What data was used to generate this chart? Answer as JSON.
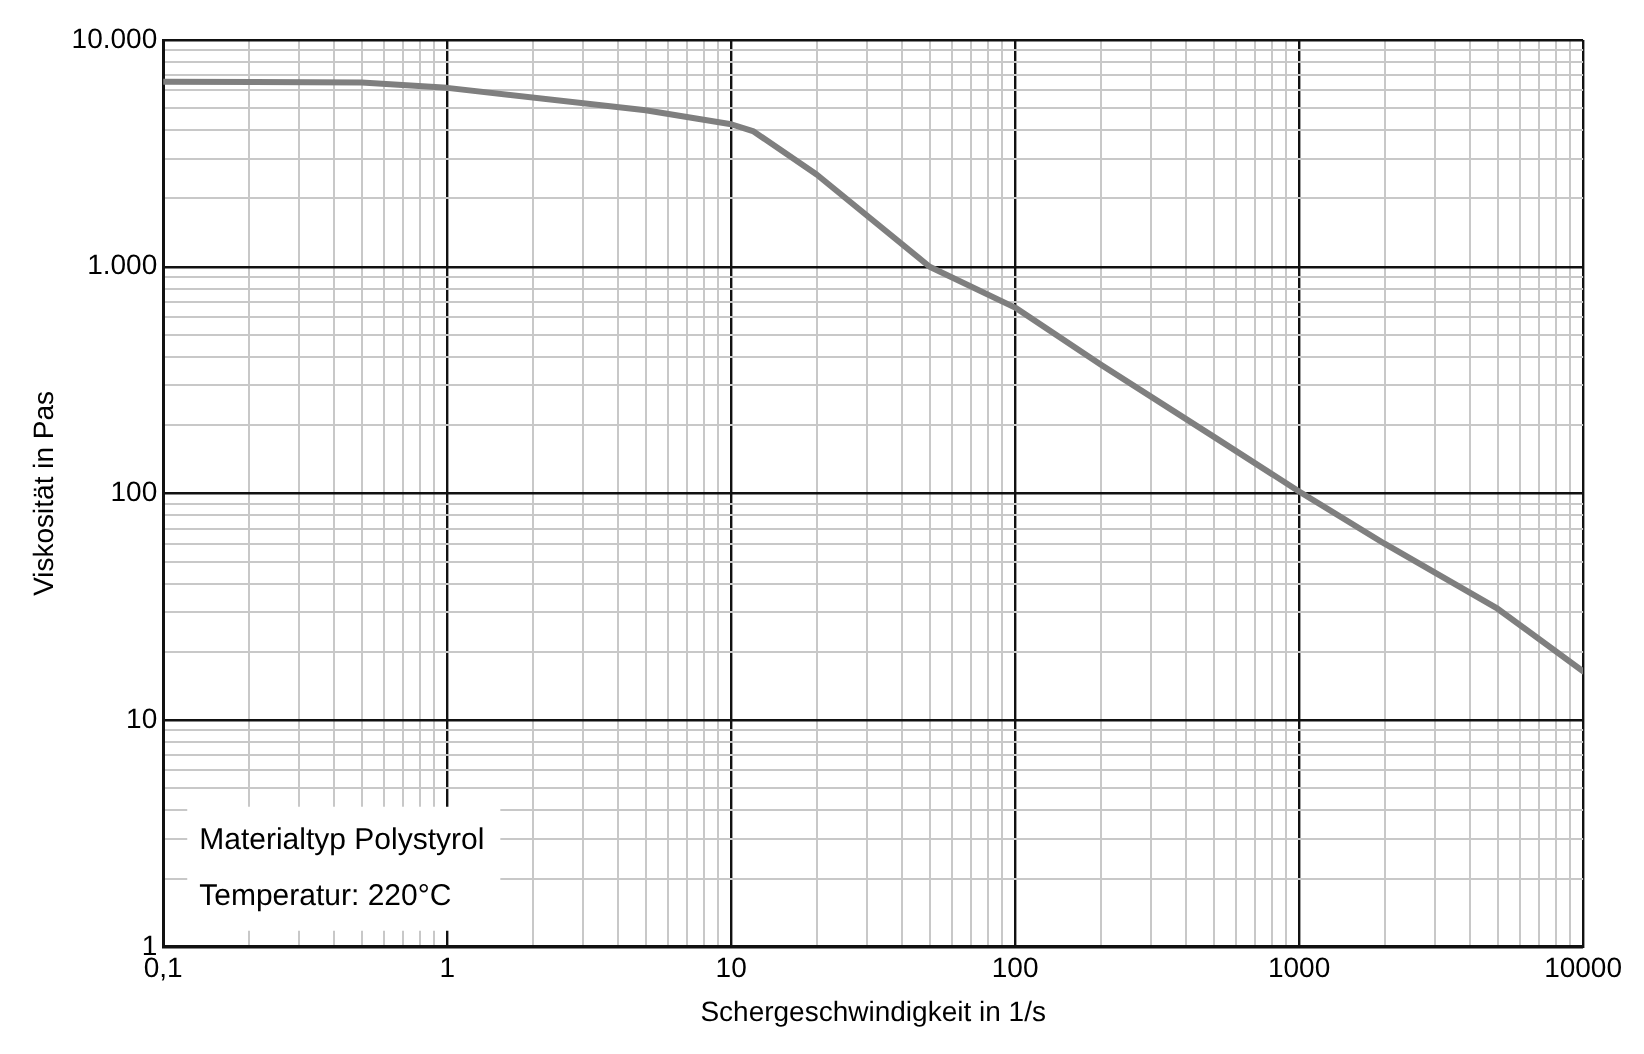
{
  "chart_data": {
    "type": "line",
    "xlabel": "Schergeschwindigkeit in 1/s",
    "ylabel": "Viskosität in Pas",
    "x": [
      0.1,
      0.5,
      1,
      5,
      10,
      12,
      20,
      50,
      100,
      200,
      500,
      1000,
      2000,
      5000,
      10000
    ],
    "series": [
      {
        "color": "#7f7f7f",
        "values": [
          6550,
          6500,
          6150,
          4900,
          4250,
          3950,
          2550,
          1000,
          660,
          370,
          178,
          102,
          60,
          31,
          16.4
        ]
      }
    ],
    "log": "xy",
    "xlim": [
      0.1,
      10000
    ],
    "ylim": [
      1,
      10000
    ],
    "xticks": [
      {
        "value": 0.1,
        "label": "0,1"
      },
      {
        "value": 0.2,
        "label": null
      },
      {
        "value": 0.3,
        "label": null
      },
      {
        "value": 0.4,
        "label": null
      },
      {
        "value": 0.5,
        "label": null
      },
      {
        "value": 0.6,
        "label": null
      },
      {
        "value": 0.7,
        "label": null
      },
      {
        "value": 0.8,
        "label": null
      },
      {
        "value": 0.9,
        "label": null
      },
      1,
      {
        "value": 2,
        "label": null
      },
      {
        "value": 3,
        "label": null
      },
      {
        "value": 4,
        "label": null
      },
      {
        "value": 5,
        "label": null
      },
      {
        "value": 6,
        "label": null
      },
      {
        "value": 7,
        "label": null
      },
      {
        "value": 8,
        "label": null
      },
      {
        "value": 9,
        "label": null
      },
      10,
      {
        "value": 20,
        "label": null
      },
      {
        "value": 30,
        "label": null
      },
      {
        "value": 40,
        "label": null
      },
      {
        "value": 50,
        "label": null
      },
      {
        "value": 60,
        "label": null
      },
      {
        "value": 70,
        "label": null
      },
      {
        "value": 80,
        "label": null
      },
      {
        "value": 90,
        "label": null
      },
      100,
      {
        "value": 200,
        "label": null
      },
      {
        "value": 300,
        "label": null
      },
      {
        "value": 400,
        "label": null
      },
      {
        "value": 500,
        "label": null
      },
      {
        "value": 600,
        "label": null
      },
      {
        "value": 700,
        "label": null
      },
      {
        "value": 800,
        "label": null
      },
      {
        "value": 900,
        "label": null
      },
      1000,
      {
        "value": 2000,
        "label": null
      },
      {
        "value": 3000,
        "label": null
      },
      {
        "value": 4000,
        "label": null
      },
      {
        "value": 5000,
        "label": null
      },
      {
        "value": 6000,
        "label": null
      },
      {
        "value": 7000,
        "label": null
      },
      {
        "value": 8000,
        "label": null
      },
      {
        "value": 9000,
        "label": null
      },
      10000
    ],
    "yticks": [
      1,
      {
        "value": 2,
        "label": null
      },
      {
        "value": 3,
        "label": null
      },
      {
        "value": 4,
        "label": null
      },
      {
        "value": 5,
        "label": null
      },
      {
        "value": 6,
        "label": null
      },
      {
        "value": 7,
        "label": null
      },
      {
        "value": 8,
        "label": null
      },
      {
        "value": 9,
        "label": null
      },
      10,
      {
        "value": 20,
        "label": null
      },
      {
        "value": 30,
        "label": null
      },
      {
        "value": 40,
        "label": null
      },
      {
        "value": 50,
        "label": null
      },
      {
        "value": 60,
        "label": null
      },
      {
        "value": 70,
        "label": null
      },
      {
        "value": 80,
        "label": null
      },
      {
        "value": 90,
        "label": null
      },
      100,
      {
        "value": 200,
        "label": null
      },
      {
        "value": 300,
        "label": null
      },
      {
        "value": 400,
        "label": null
      },
      {
        "value": 500,
        "label": null
      },
      {
        "value": 600,
        "label": null
      },
      {
        "value": 700,
        "label": null
      },
      {
        "value": 800,
        "label": null
      },
      {
        "value": 900,
        "label": null
      },
      {
        "value": 1000,
        "label": "1.000"
      },
      {
        "value": 2000,
        "label": null
      },
      {
        "value": 3000,
        "label": null
      },
      {
        "value": 4000,
        "label": null
      },
      {
        "value": 5000,
        "label": null
      },
      {
        "value": 6000,
        "label": null
      },
      {
        "value": 7000,
        "label": null
      },
      {
        "value": 8000,
        "label": null
      },
      {
        "value": 9000,
        "label": null
      },
      {
        "value": 10000,
        "label": "10.000"
      }
    ],
    "grid": true,
    "marker": "none",
    "line_style": "solid",
    "annotations": [
      "Materialtyp Polystyrol",
      "Temperatur: 220°C"
    ]
  }
}
